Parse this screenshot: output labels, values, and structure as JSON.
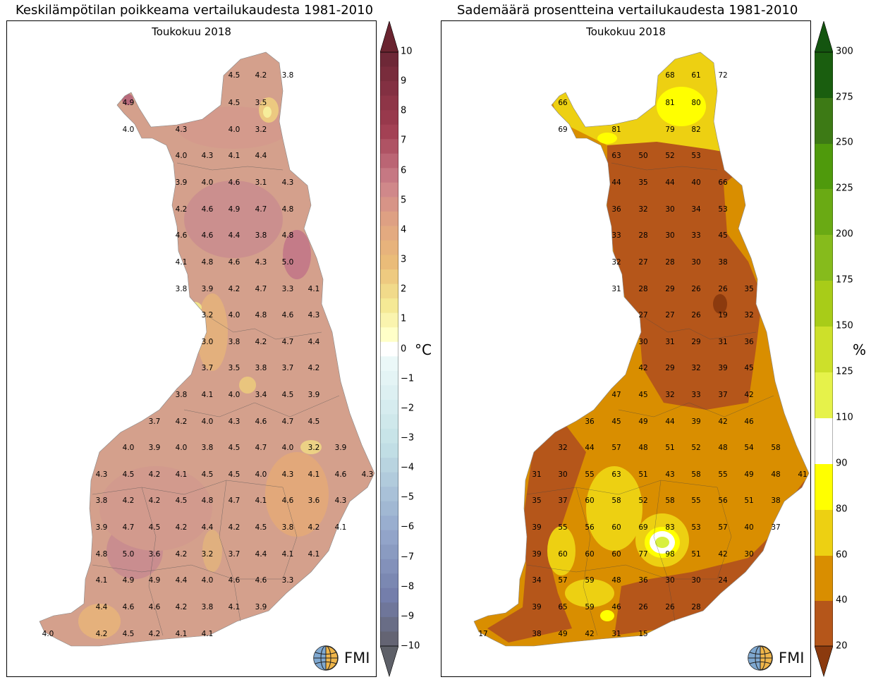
{
  "left": {
    "title": "Keskilämpötilan poikkeama vertailukaudesta 1981-2010",
    "subtitle": "Toukokuu 2018",
    "unit": "°C",
    "logo": "FMI",
    "colorbar_ticks": [
      "10",
      "9",
      "8",
      "7",
      "6",
      "5",
      "4",
      "3",
      "2",
      "1",
      "0",
      "−1",
      "−2",
      "−3",
      "−4",
      "−5",
      "−6",
      "−7",
      "−8",
      "−9",
      "−10"
    ],
    "colors": {
      "warm_main": "#d4a08c",
      "warm_hot": "#c77f88",
      "warm_orange": "#e0a877",
      "yellow": "#f0e48a"
    },
    "stations": [
      [
        "4.5",
        332,
        107
      ],
      [
        "4.2",
        370,
        107
      ],
      [
        "3.8",
        408,
        107
      ],
      [
        "4.9",
        182,
        146
      ],
      [
        "4.5",
        332,
        146
      ],
      [
        "3.5",
        370,
        146
      ],
      [
        "4.0",
        182,
        184
      ],
      [
        "4.3",
        257,
        184
      ],
      [
        "4.0",
        332,
        184
      ],
      [
        "3.2",
        370,
        184
      ],
      [
        "4.0",
        257,
        221
      ],
      [
        "4.3",
        294,
        221
      ],
      [
        "4.1",
        332,
        221
      ],
      [
        "4.4",
        370,
        221
      ],
      [
        "3.9",
        257,
        259
      ],
      [
        "4.0",
        294,
        259
      ],
      [
        "4.6",
        332,
        259
      ],
      [
        "3.1",
        370,
        259
      ],
      [
        "4.3",
        408,
        259
      ],
      [
        "4.2",
        257,
        297
      ],
      [
        "4.6",
        294,
        297
      ],
      [
        "4.9",
        332,
        297
      ],
      [
        "4.7",
        370,
        297
      ],
      [
        "4.8",
        408,
        297
      ],
      [
        "4.6",
        257,
        334
      ],
      [
        "4.6",
        294,
        334
      ],
      [
        "4.4",
        332,
        334
      ],
      [
        "3.8",
        370,
        334
      ],
      [
        "4.8",
        408,
        334
      ],
      [
        "4.1",
        257,
        372
      ],
      [
        "4.8",
        294,
        372
      ],
      [
        "4.6",
        332,
        372
      ],
      [
        "4.3",
        370,
        372
      ],
      [
        "5.0",
        408,
        372
      ],
      [
        "3.8",
        257,
        410
      ],
      [
        "3.9",
        294,
        410
      ],
      [
        "4.2",
        332,
        410
      ],
      [
        "4.7",
        370,
        410
      ],
      [
        "3.3",
        408,
        410
      ],
      [
        "4.1",
        445,
        410
      ],
      [
        "3.2",
        294,
        447
      ],
      [
        "4.0",
        332,
        447
      ],
      [
        "4.8",
        370,
        447
      ],
      [
        "4.6",
        408,
        447
      ],
      [
        "4.3",
        445,
        447
      ],
      [
        "3.0",
        294,
        485
      ],
      [
        "3.8",
        332,
        485
      ],
      [
        "4.2",
        370,
        485
      ],
      [
        "4.7",
        408,
        485
      ],
      [
        "4.4",
        445,
        485
      ],
      [
        "3.7",
        294,
        522
      ],
      [
        "3.5",
        332,
        522
      ],
      [
        "3.8",
        370,
        522
      ],
      [
        "3.7",
        408,
        522
      ],
      [
        "4.2",
        445,
        522
      ],
      [
        "3.8",
        257,
        560
      ],
      [
        "4.1",
        294,
        560
      ],
      [
        "4.0",
        332,
        560
      ],
      [
        "3.4",
        370,
        560
      ],
      [
        "4.5",
        408,
        560
      ],
      [
        "3.9",
        445,
        560
      ],
      [
        "3.7",
        219,
        598
      ],
      [
        "4.2",
        257,
        598
      ],
      [
        "4.0",
        294,
        598
      ],
      [
        "4.3",
        332,
        598
      ],
      [
        "4.6",
        370,
        598
      ],
      [
        "4.7",
        408,
        598
      ],
      [
        "4.5",
        445,
        598
      ],
      [
        "4.0",
        182,
        635
      ],
      [
        "3.9",
        219,
        635
      ],
      [
        "4.0",
        257,
        635
      ],
      [
        "3.8",
        294,
        635
      ],
      [
        "4.5",
        332,
        635
      ],
      [
        "4.7",
        370,
        635
      ],
      [
        "4.0",
        408,
        635
      ],
      [
        "3.2",
        445,
        635
      ],
      [
        "3.9",
        483,
        635
      ],
      [
        "4.3",
        144,
        673
      ],
      [
        "4.5",
        182,
        673
      ],
      [
        "4.2",
        219,
        673
      ],
      [
        "4.1",
        257,
        673
      ],
      [
        "4.5",
        294,
        673
      ],
      [
        "4.5",
        332,
        673
      ],
      [
        "4.0",
        370,
        673
      ],
      [
        "4.3",
        408,
        673
      ],
      [
        "4.1",
        445,
        673
      ],
      [
        "4.6",
        483,
        673
      ],
      [
        "4.3",
        521,
        673
      ],
      [
        "3.8",
        144,
        710
      ],
      [
        "4.2",
        182,
        710
      ],
      [
        "4.2",
        219,
        710
      ],
      [
        "4.5",
        257,
        710
      ],
      [
        "4.8",
        294,
        710
      ],
      [
        "4.7",
        332,
        710
      ],
      [
        "4.1",
        370,
        710
      ],
      [
        "4.6",
        408,
        710
      ],
      [
        "3.6",
        445,
        710
      ],
      [
        "4.3",
        483,
        710
      ],
      [
        "3.9",
        144,
        748
      ],
      [
        "4.7",
        182,
        748
      ],
      [
        "4.5",
        219,
        748
      ],
      [
        "4.2",
        257,
        748
      ],
      [
        "4.4",
        294,
        748
      ],
      [
        "4.2",
        332,
        748
      ],
      [
        "4.5",
        370,
        748
      ],
      [
        "3.8",
        408,
        748
      ],
      [
        "4.2",
        445,
        748
      ],
      [
        "4.1",
        483,
        748
      ],
      [
        "4.8",
        144,
        786
      ],
      [
        "5.0",
        182,
        786
      ],
      [
        "3.6",
        219,
        786
      ],
      [
        "4.2",
        257,
        786
      ],
      [
        "3.2",
        294,
        786
      ],
      [
        "3.7",
        332,
        786
      ],
      [
        "4.4",
        370,
        786
      ],
      [
        "4.1",
        408,
        786
      ],
      [
        "4.1",
        445,
        786
      ],
      [
        "4.1",
        144,
        823
      ],
      [
        "4.9",
        182,
        823
      ],
      [
        "4.9",
        219,
        823
      ],
      [
        "4.4",
        257,
        823
      ],
      [
        "4.0",
        294,
        823
      ],
      [
        "4.6",
        332,
        823
      ],
      [
        "4.6",
        370,
        823
      ],
      [
        "3.3",
        408,
        823
      ],
      [
        "4.4",
        144,
        861
      ],
      [
        "4.6",
        182,
        861
      ],
      [
        "4.6",
        219,
        861
      ],
      [
        "4.2",
        257,
        861
      ],
      [
        "3.8",
        294,
        861
      ],
      [
        "4.1",
        332,
        861
      ],
      [
        "3.9",
        370,
        861
      ],
      [
        "4.0",
        68,
        899
      ],
      [
        "4.2",
        144,
        899
      ],
      [
        "4.5",
        182,
        899
      ],
      [
        "4.2",
        219,
        899
      ],
      [
        "4.1",
        257,
        899
      ],
      [
        "4.1",
        294,
        899
      ]
    ]
  },
  "right": {
    "title": "Sademäärä prosentteina vertailukaudesta 1981-2010",
    "subtitle": "Toukokuu 2018",
    "unit": "%",
    "logo": "FMI",
    "colorbar_ticks": [
      "300",
      "275",
      "250",
      "225",
      "200",
      "175",
      "150",
      "125",
      "110",
      "90",
      "80",
      "60",
      "40",
      "20"
    ],
    "colors": {
      "brown": "#b5561a",
      "dark_brown": "#8b3a0e",
      "orange": "#d98e00",
      "yellow": "#edd012",
      "bright_yellow": "#ffff00"
    },
    "stations": [
      [
        "68",
        950,
        107
      ],
      [
        "61",
        987,
        107
      ],
      [
        "72",
        1025,
        107
      ],
      [
        "66",
        798,
        146
      ],
      [
        "81",
        950,
        146
      ],
      [
        "80",
        987,
        146
      ],
      [
        "69",
        798,
        184
      ],
      [
        "81",
        874,
        184
      ],
      [
        "79",
        950,
        184
      ],
      [
        "82",
        987,
        184
      ],
      [
        "63",
        874,
        221
      ],
      [
        "50",
        912,
        221
      ],
      [
        "52",
        950,
        221
      ],
      [
        "53",
        987,
        221
      ],
      [
        "44",
        874,
        259
      ],
      [
        "35",
        912,
        259
      ],
      [
        "44",
        950,
        259
      ],
      [
        "40",
        987,
        259
      ],
      [
        "66",
        1025,
        259
      ],
      [
        "36",
        874,
        297
      ],
      [
        "32",
        912,
        297
      ],
      [
        "30",
        950,
        297
      ],
      [
        "34",
        987,
        297
      ],
      [
        "53",
        1025,
        297
      ],
      [
        "33",
        874,
        334
      ],
      [
        "28",
        912,
        334
      ],
      [
        "30",
        950,
        334
      ],
      [
        "33",
        987,
        334
      ],
      [
        "45",
        1025,
        334
      ],
      [
        "32",
        874,
        372
      ],
      [
        "27",
        912,
        372
      ],
      [
        "28",
        950,
        372
      ],
      [
        "30",
        987,
        372
      ],
      [
        "38",
        1025,
        372
      ],
      [
        "31",
        874,
        410
      ],
      [
        "28",
        912,
        410
      ],
      [
        "29",
        950,
        410
      ],
      [
        "26",
        987,
        410
      ],
      [
        "26",
        1025,
        410
      ],
      [
        "35",
        1062,
        410
      ],
      [
        "27",
        912,
        447
      ],
      [
        "27",
        950,
        447
      ],
      [
        "26",
        987,
        447
      ],
      [
        "19",
        1025,
        447
      ],
      [
        "32",
        1062,
        447
      ],
      [
        "30",
        912,
        485
      ],
      [
        "31",
        950,
        485
      ],
      [
        "29",
        987,
        485
      ],
      [
        "31",
        1025,
        485
      ],
      [
        "36",
        1062,
        485
      ],
      [
        "42",
        912,
        522
      ],
      [
        "29",
        950,
        522
      ],
      [
        "32",
        987,
        522
      ],
      [
        "39",
        1025,
        522
      ],
      [
        "45",
        1062,
        522
      ],
      [
        "47",
        874,
        560
      ],
      [
        "45",
        912,
        560
      ],
      [
        "32",
        950,
        560
      ],
      [
        "33",
        987,
        560
      ],
      [
        "37",
        1025,
        560
      ],
      [
        "42",
        1062,
        560
      ],
      [
        "36",
        836,
        598
      ],
      [
        "45",
        874,
        598
      ],
      [
        "49",
        912,
        598
      ],
      [
        "44",
        950,
        598
      ],
      [
        "39",
        987,
        598
      ],
      [
        "42",
        1025,
        598
      ],
      [
        "46",
        1062,
        598
      ],
      [
        "32",
        798,
        635
      ],
      [
        "44",
        836,
        635
      ],
      [
        "57",
        874,
        635
      ],
      [
        "48",
        912,
        635
      ],
      [
        "51",
        950,
        635
      ],
      [
        "52",
        987,
        635
      ],
      [
        "48",
        1025,
        635
      ],
      [
        "54",
        1062,
        635
      ],
      [
        "58",
        1100,
        635
      ],
      [
        "31",
        761,
        673
      ],
      [
        "30",
        798,
        673
      ],
      [
        "55",
        836,
        673
      ],
      [
        "63",
        874,
        673
      ],
      [
        "51",
        912,
        673
      ],
      [
        "43",
        950,
        673
      ],
      [
        "58",
        987,
        673
      ],
      [
        "55",
        1025,
        673
      ],
      [
        "49",
        1062,
        673
      ],
      [
        "48",
        1100,
        673
      ],
      [
        "41",
        1138,
        673
      ],
      [
        "35",
        761,
        710
      ],
      [
        "37",
        798,
        710
      ],
      [
        "60",
        836,
        710
      ],
      [
        "58",
        874,
        710
      ],
      [
        "52",
        912,
        710
      ],
      [
        "58",
        950,
        710
      ],
      [
        "55",
        987,
        710
      ],
      [
        "56",
        1025,
        710
      ],
      [
        "51",
        1062,
        710
      ],
      [
        "38",
        1100,
        710
      ],
      [
        "39",
        761,
        748
      ],
      [
        "55",
        798,
        748
      ],
      [
        "56",
        836,
        748
      ],
      [
        "60",
        874,
        748
      ],
      [
        "69",
        912,
        748
      ],
      [
        "83",
        950,
        748
      ],
      [
        "53",
        987,
        748
      ],
      [
        "57",
        1025,
        748
      ],
      [
        "40",
        1062,
        748
      ],
      [
        "37",
        1100,
        748
      ],
      [
        "39",
        761,
        786
      ],
      [
        "60",
        798,
        786
      ],
      [
        "60",
        836,
        786
      ],
      [
        "60",
        874,
        786
      ],
      [
        "77",
        912,
        786
      ],
      [
        "98",
        950,
        786
      ],
      [
        "51",
        987,
        786
      ],
      [
        "42",
        1025,
        786
      ],
      [
        "30",
        1062,
        786
      ],
      [
        "34",
        761,
        823
      ],
      [
        "57",
        798,
        823
      ],
      [
        "59",
        836,
        823
      ],
      [
        "48",
        874,
        823
      ],
      [
        "36",
        912,
        823
      ],
      [
        "30",
        950,
        823
      ],
      [
        "30",
        987,
        823
      ],
      [
        "24",
        1025,
        823
      ],
      [
        "39",
        761,
        861
      ],
      [
        "65",
        798,
        861
      ],
      [
        "59",
        836,
        861
      ],
      [
        "46",
        874,
        861
      ],
      [
        "26",
        912,
        861
      ],
      [
        "26",
        950,
        861
      ],
      [
        "28",
        987,
        861
      ],
      [
        "17",
        685,
        899
      ],
      [
        "38",
        761,
        899
      ],
      [
        "49",
        798,
        899
      ],
      [
        "42",
        836,
        899
      ],
      [
        "31",
        874,
        899
      ],
      [
        "15",
        912,
        899
      ]
    ]
  }
}
